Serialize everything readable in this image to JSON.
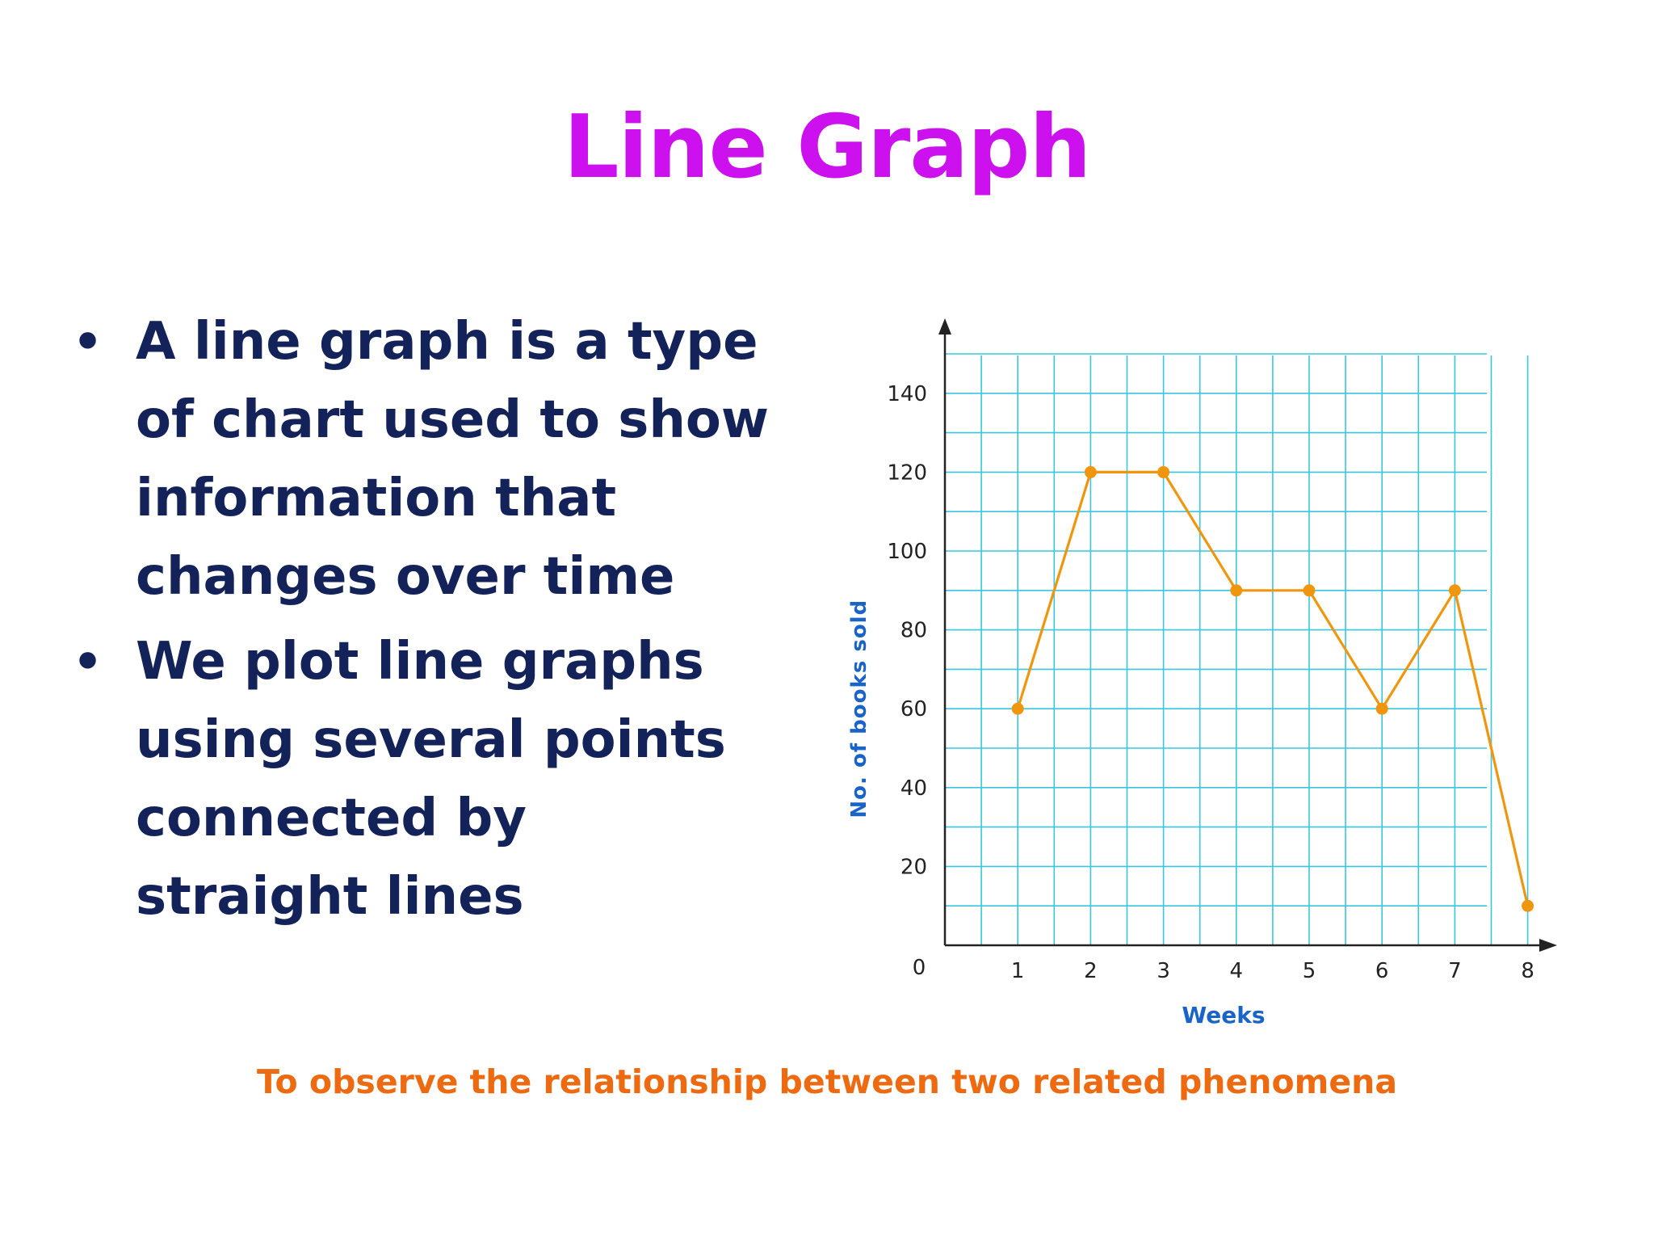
{
  "slide": {
    "title": "Line Graph",
    "bullets": [
      "A line graph is a type of chart used to show information that changes over time",
      "We plot line graphs using several points connected by straight lines"
    ],
    "bullet_symbol": "•",
    "footer": "To observe the relationship between two related phenomena"
  },
  "colors": {
    "title": "#cc11ee",
    "bullets": "#13235a",
    "footer": "#ee6a10",
    "grid": "#38c6e2",
    "line": "#f0960e",
    "axis_label": "#1a64c8"
  },
  "chart_data": {
    "type": "line",
    "x": [
      1,
      2,
      3,
      4,
      5,
      6,
      7,
      8
    ],
    "values": [
      60,
      120,
      120,
      90,
      90,
      60,
      90,
      10
    ],
    "xlabel": "Weeks",
    "ylabel": "No. of books sold",
    "ylim": [
      0,
      150
    ],
    "xlim": [
      0,
      8
    ],
    "x_ticks": [
      "1",
      "2",
      "3",
      "4",
      "5",
      "6",
      "7",
      "8"
    ],
    "y_ticks": [
      "20",
      "40",
      "60",
      "80",
      "100",
      "120",
      "140"
    ],
    "origin_label": "0",
    "grid": true
  }
}
